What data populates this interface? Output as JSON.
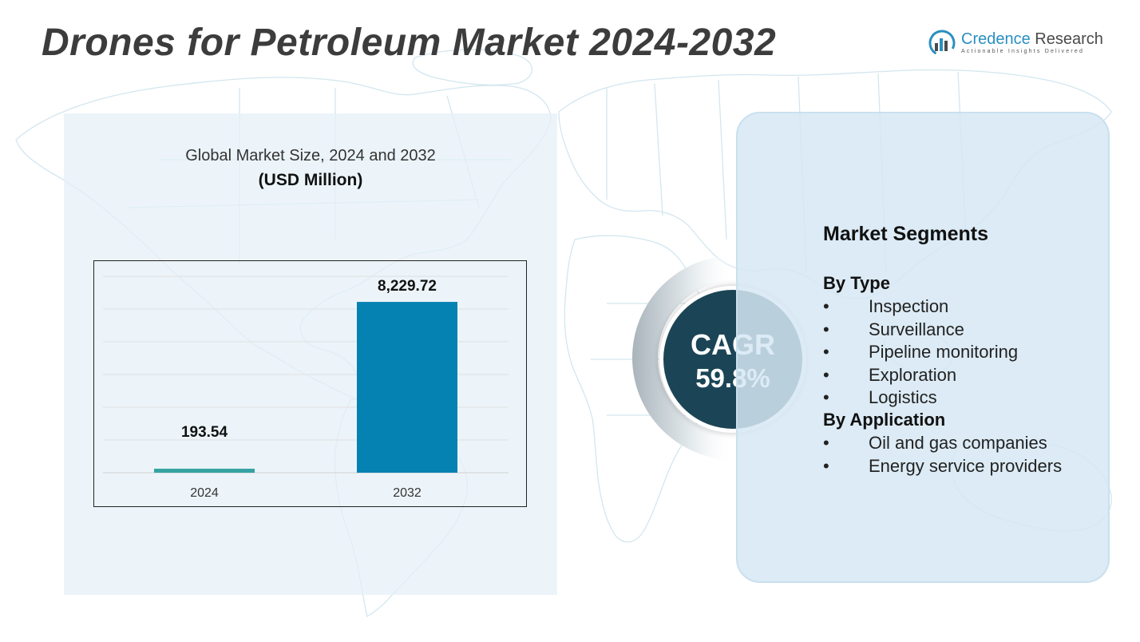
{
  "header": {
    "title": "Drones for Petroleum Market 2024-2032"
  },
  "logo": {
    "name_part1": "Credence",
    "name_part2": "Research",
    "tagline": "Actionable Insights Delivered",
    "icon": "bar-chart-circle-icon"
  },
  "chart_data": {
    "type": "bar",
    "title": "Global Market Size, 2024 and 2032",
    "unit_label": "(USD Million)",
    "categories": [
      "2024",
      "2032"
    ],
    "values": [
      193.54,
      8229.72
    ],
    "value_labels": [
      "193.54",
      "8,229.72"
    ],
    "colors": [
      "#35a3a2",
      "#0581b2"
    ],
    "grid": true,
    "legend": "none"
  },
  "cagr": {
    "label": "CAGR",
    "value": "59.8%"
  },
  "segments": {
    "title": "Market Segments",
    "groups": [
      {
        "label": "By Type",
        "items": [
          "Inspection",
          "Surveillance",
          "Pipeline monitoring",
          "Exploration",
          "Logistics"
        ]
      },
      {
        "label": "By Application",
        "items": [
          "Oil and gas companies",
          "Energy service providers"
        ]
      }
    ],
    "bullet": "•"
  }
}
